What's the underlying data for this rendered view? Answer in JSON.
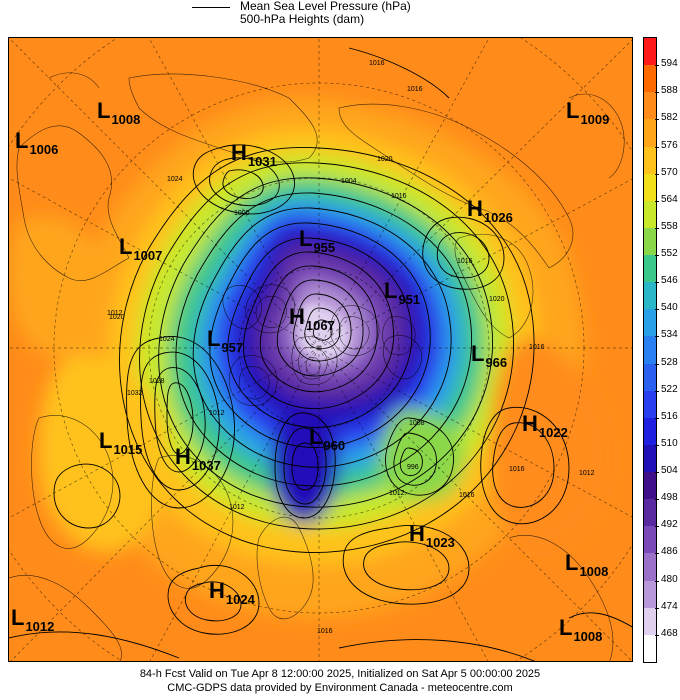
{
  "legend": {
    "mslp_label": "Mean Sea Level Pressure (hPa)",
    "heights_label": "500-hPa Heights (dam)"
  },
  "colorbar": {
    "labels": [
      "594",
      "588",
      "582",
      "576",
      "570",
      "564",
      "558",
      "552",
      "546",
      "540",
      "534",
      "528",
      "522",
      "516",
      "510",
      "504",
      "498",
      "492",
      "486",
      "480",
      "474",
      "468"
    ],
    "colors": [
      "#ff1a1a",
      "#ff6a00",
      "#ff8c1a",
      "#ffa51a",
      "#ffc21a",
      "#f2e01a",
      "#c8e82a",
      "#8ad84a",
      "#3cc88a",
      "#2ab8c8",
      "#2aa0e8",
      "#2a80f0",
      "#2a60f0",
      "#2a40f0",
      "#2020e0",
      "#2010b8",
      "#40108a",
      "#5a2aa0",
      "#7a4ab8",
      "#9a70c8",
      "#b898d8",
      "#e0d0f0",
      "#ffffff"
    ]
  },
  "centers": [
    {
      "type": "L",
      "value": "1008"
    },
    {
      "type": "L",
      "value": "1006"
    },
    {
      "type": "H",
      "value": "1031"
    },
    {
      "type": "L",
      "value": "1009"
    },
    {
      "type": "H",
      "value": "1026"
    },
    {
      "type": "L",
      "value": "1007"
    },
    {
      "type": "L",
      "value": "955"
    },
    {
      "type": "L",
      "value": "951"
    },
    {
      "type": "H",
      "value": "1067"
    },
    {
      "type": "L",
      "value": "957"
    },
    {
      "type": "L",
      "value": "966"
    },
    {
      "type": "H",
      "value": "1022"
    },
    {
      "type": "L",
      "value": "960"
    },
    {
      "type": "L",
      "value": "1015"
    },
    {
      "type": "H",
      "value": "1037"
    },
    {
      "type": "H",
      "value": "1023"
    },
    {
      "type": "L",
      "value": "1008"
    },
    {
      "type": "H",
      "value": "1024"
    },
    {
      "type": "L",
      "value": "1012"
    },
    {
      "type": "L",
      "value": "1008"
    }
  ],
  "isobar_labels": [
    "1016",
    "1016",
    "1020",
    "1024",
    "1004",
    "1000",
    "1016",
    "1016",
    "1020",
    "1012",
    "1020",
    "1016",
    "1032",
    "1028",
    "1024",
    "1012",
    "1008",
    "1012",
    "996",
    "1012",
    "1016",
    "1016",
    "1012",
    "1016"
  ],
  "footer": {
    "line1": "84-h Fcst Valid on Tue Apr  8 12:00:00 2025, Initialized on Sat Apr  5 00:00:00 2025",
    "line2": "CMC-GDPS data provided by Environment Canada - meteocentre.com"
  }
}
